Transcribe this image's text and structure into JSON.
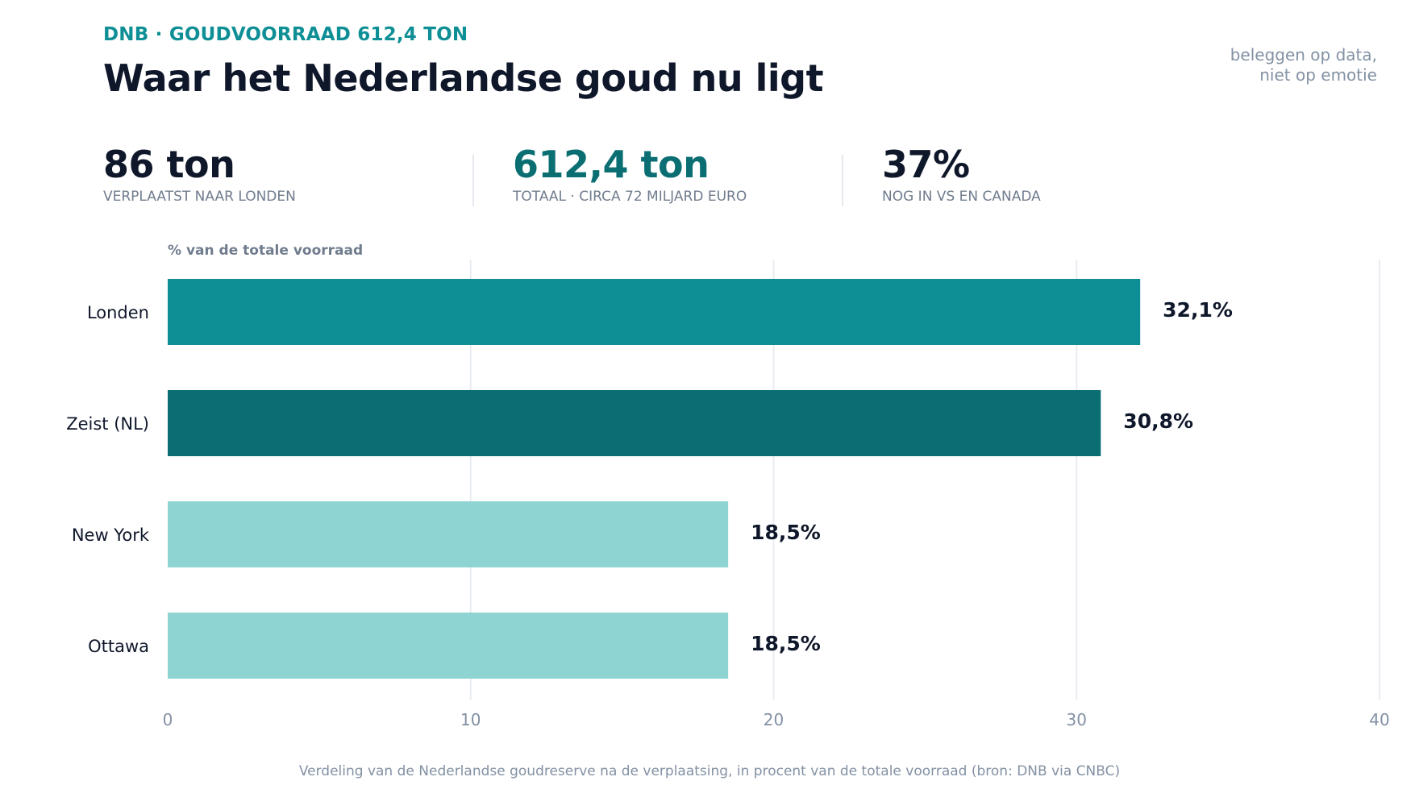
{
  "header": {
    "kicker": "DNB · GOUDVOORRAAD 612,4 TON",
    "title": "Waar het Nederlandse goud nu ligt",
    "tagline_line1": "beleggen op data,",
    "tagline_line2": "niet op emotie"
  },
  "stats": [
    {
      "value": "86 ton",
      "label": "VERPLAATST NAAR LONDEN",
      "color": "#0f172a"
    },
    {
      "value": "612,4 ton",
      "label": "TOTAAL · CIRCA 72 MILJARD EURO",
      "color": "#0b6e73"
    },
    {
      "value": "37%",
      "label": "NOG IN VS EN CANADA",
      "color": "#0f172a"
    }
  ],
  "caption": "Verdeling van de Nederlandse goudreserve na de verplaatsing, in procent van de totale voorraad (bron: DNB via CNBC)",
  "chart_data": {
    "type": "bar",
    "orientation": "horizontal",
    "title": "",
    "xlabel": "",
    "ylabel": "% van de totale voorraad",
    "categories": [
      "Londen",
      "Zeist (NL)",
      "New York",
      "Ottawa"
    ],
    "values": [
      32.1,
      30.8,
      18.5,
      18.5
    ],
    "value_labels": [
      "32,1%",
      "30,8%",
      "18,5%",
      "18,5%"
    ],
    "colors": [
      "#0e8f95",
      "#0b6e73",
      "#8dd4d3",
      "#8dd4d3"
    ],
    "xlim": [
      0,
      40
    ],
    "xticks": [
      0,
      10,
      20,
      30,
      40
    ],
    "grid": true,
    "legend": "none"
  }
}
